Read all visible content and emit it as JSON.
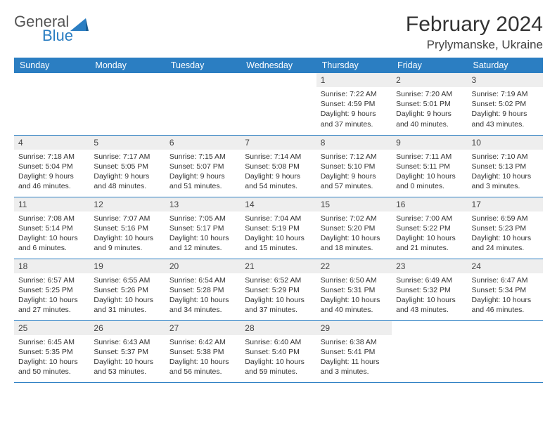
{
  "brand": {
    "part1": "General",
    "part2": "Blue",
    "accent": "#2b7ec2"
  },
  "title": "February 2024",
  "location": "Prylymanske, Ukraine",
  "colors": {
    "header_bg": "#2b7ec2",
    "header_fg": "#ffffff",
    "daynum_bg": "#eeeeee",
    "border": "#2b7ec2",
    "text": "#333333"
  },
  "fonts": {
    "title_size": 30,
    "location_size": 17,
    "dayheader_size": 12.5,
    "body_size": 10.5
  },
  "weekday_labels": [
    "Sunday",
    "Monday",
    "Tuesday",
    "Wednesday",
    "Thursday",
    "Friday",
    "Saturday"
  ],
  "first_weekday_index": 4,
  "days": [
    {
      "n": 1,
      "sunrise": "7:22 AM",
      "sunset": "4:59 PM",
      "daylight": "9 hours and 37 minutes."
    },
    {
      "n": 2,
      "sunrise": "7:20 AM",
      "sunset": "5:01 PM",
      "daylight": "9 hours and 40 minutes."
    },
    {
      "n": 3,
      "sunrise": "7:19 AM",
      "sunset": "5:02 PM",
      "daylight": "9 hours and 43 minutes."
    },
    {
      "n": 4,
      "sunrise": "7:18 AM",
      "sunset": "5:04 PM",
      "daylight": "9 hours and 46 minutes."
    },
    {
      "n": 5,
      "sunrise": "7:17 AM",
      "sunset": "5:05 PM",
      "daylight": "9 hours and 48 minutes."
    },
    {
      "n": 6,
      "sunrise": "7:15 AM",
      "sunset": "5:07 PM",
      "daylight": "9 hours and 51 minutes."
    },
    {
      "n": 7,
      "sunrise": "7:14 AM",
      "sunset": "5:08 PM",
      "daylight": "9 hours and 54 minutes."
    },
    {
      "n": 8,
      "sunrise": "7:12 AM",
      "sunset": "5:10 PM",
      "daylight": "9 hours and 57 minutes."
    },
    {
      "n": 9,
      "sunrise": "7:11 AM",
      "sunset": "5:11 PM",
      "daylight": "10 hours and 0 minutes."
    },
    {
      "n": 10,
      "sunrise": "7:10 AM",
      "sunset": "5:13 PM",
      "daylight": "10 hours and 3 minutes."
    },
    {
      "n": 11,
      "sunrise": "7:08 AM",
      "sunset": "5:14 PM",
      "daylight": "10 hours and 6 minutes."
    },
    {
      "n": 12,
      "sunrise": "7:07 AM",
      "sunset": "5:16 PM",
      "daylight": "10 hours and 9 minutes."
    },
    {
      "n": 13,
      "sunrise": "7:05 AM",
      "sunset": "5:17 PM",
      "daylight": "10 hours and 12 minutes."
    },
    {
      "n": 14,
      "sunrise": "7:04 AM",
      "sunset": "5:19 PM",
      "daylight": "10 hours and 15 minutes."
    },
    {
      "n": 15,
      "sunrise": "7:02 AM",
      "sunset": "5:20 PM",
      "daylight": "10 hours and 18 minutes."
    },
    {
      "n": 16,
      "sunrise": "7:00 AM",
      "sunset": "5:22 PM",
      "daylight": "10 hours and 21 minutes."
    },
    {
      "n": 17,
      "sunrise": "6:59 AM",
      "sunset": "5:23 PM",
      "daylight": "10 hours and 24 minutes."
    },
    {
      "n": 18,
      "sunrise": "6:57 AM",
      "sunset": "5:25 PM",
      "daylight": "10 hours and 27 minutes."
    },
    {
      "n": 19,
      "sunrise": "6:55 AM",
      "sunset": "5:26 PM",
      "daylight": "10 hours and 31 minutes."
    },
    {
      "n": 20,
      "sunrise": "6:54 AM",
      "sunset": "5:28 PM",
      "daylight": "10 hours and 34 minutes."
    },
    {
      "n": 21,
      "sunrise": "6:52 AM",
      "sunset": "5:29 PM",
      "daylight": "10 hours and 37 minutes."
    },
    {
      "n": 22,
      "sunrise": "6:50 AM",
      "sunset": "5:31 PM",
      "daylight": "10 hours and 40 minutes."
    },
    {
      "n": 23,
      "sunrise": "6:49 AM",
      "sunset": "5:32 PM",
      "daylight": "10 hours and 43 minutes."
    },
    {
      "n": 24,
      "sunrise": "6:47 AM",
      "sunset": "5:34 PM",
      "daylight": "10 hours and 46 minutes."
    },
    {
      "n": 25,
      "sunrise": "6:45 AM",
      "sunset": "5:35 PM",
      "daylight": "10 hours and 50 minutes."
    },
    {
      "n": 26,
      "sunrise": "6:43 AM",
      "sunset": "5:37 PM",
      "daylight": "10 hours and 53 minutes."
    },
    {
      "n": 27,
      "sunrise": "6:42 AM",
      "sunset": "5:38 PM",
      "daylight": "10 hours and 56 minutes."
    },
    {
      "n": 28,
      "sunrise": "6:40 AM",
      "sunset": "5:40 PM",
      "daylight": "10 hours and 59 minutes."
    },
    {
      "n": 29,
      "sunrise": "6:38 AM",
      "sunset": "5:41 PM",
      "daylight": "11 hours and 3 minutes."
    }
  ],
  "labels": {
    "sunrise": "Sunrise:",
    "sunset": "Sunset:",
    "daylight": "Daylight:"
  }
}
